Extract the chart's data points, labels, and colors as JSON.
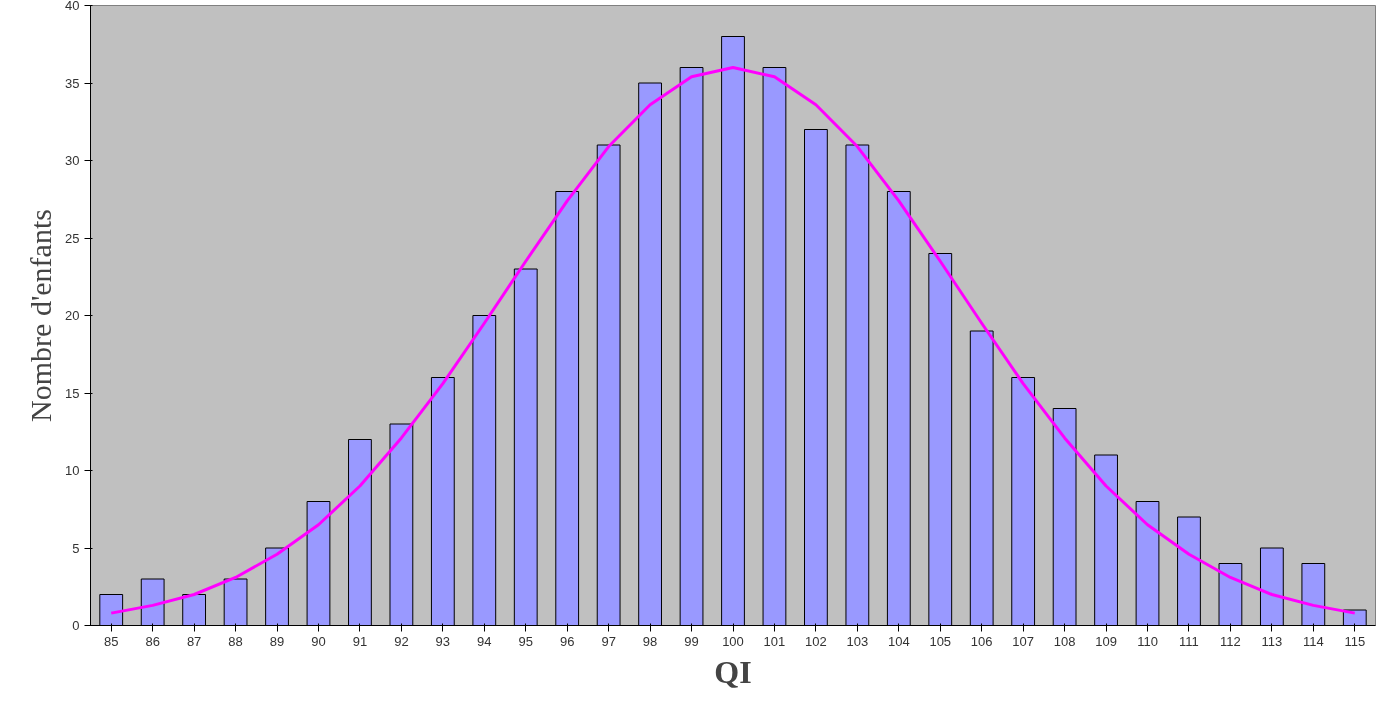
{
  "chart_data": {
    "type": "bar",
    "xlabel": "QI",
    "ylabel": "Nombre d'enfants",
    "x": [
      85,
      86,
      87,
      88,
      89,
      90,
      91,
      92,
      93,
      94,
      95,
      96,
      97,
      98,
      99,
      100,
      101,
      102,
      103,
      104,
      105,
      106,
      107,
      108,
      109,
      110,
      111,
      112,
      113,
      114,
      115
    ],
    "xlim": [
      84.5,
      115.5
    ],
    "xticks": [
      85,
      86,
      87,
      88,
      89,
      90,
      91,
      92,
      93,
      94,
      95,
      96,
      97,
      98,
      99,
      100,
      101,
      102,
      103,
      104,
      105,
      106,
      107,
      108,
      109,
      110,
      111,
      112,
      113,
      114,
      115
    ],
    "ylim": [
      0,
      40
    ],
    "yticks": [
      0,
      5,
      10,
      15,
      20,
      25,
      30,
      35,
      40
    ],
    "grid": false,
    "series": [
      {
        "color": "#9999ff",
        "values": [
          2,
          3,
          2,
          3,
          5,
          8,
          12,
          13,
          16,
          20,
          23,
          28,
          31,
          35,
          36,
          38,
          36,
          32,
          31,
          28,
          24,
          19,
          16,
          14,
          11,
          8,
          7,
          4,
          5,
          4,
          1
        ]
      },
      {
        "type": "line",
        "color": "#ff00ff",
        "x": [
          85,
          86,
          87,
          88,
          89,
          90,
          91,
          92,
          93,
          94,
          95,
          96,
          97,
          98,
          99,
          100,
          101,
          102,
          103,
          104,
          105,
          106,
          107,
          108,
          109,
          110,
          111,
          112,
          113,
          114,
          115
        ],
        "values": [
          0.8,
          1.3,
          2.0,
          3.1,
          4.6,
          6.5,
          9.0,
          12.1,
          15.6,
          19.5,
          23.5,
          27.4,
          30.9,
          33.6,
          35.4,
          36,
          35.4,
          33.6,
          30.9,
          27.4,
          23.5,
          19.5,
          15.6,
          12.1,
          9.0,
          6.5,
          4.6,
          3.1,
          2.0,
          1.3,
          0.8
        ]
      }
    ]
  }
}
